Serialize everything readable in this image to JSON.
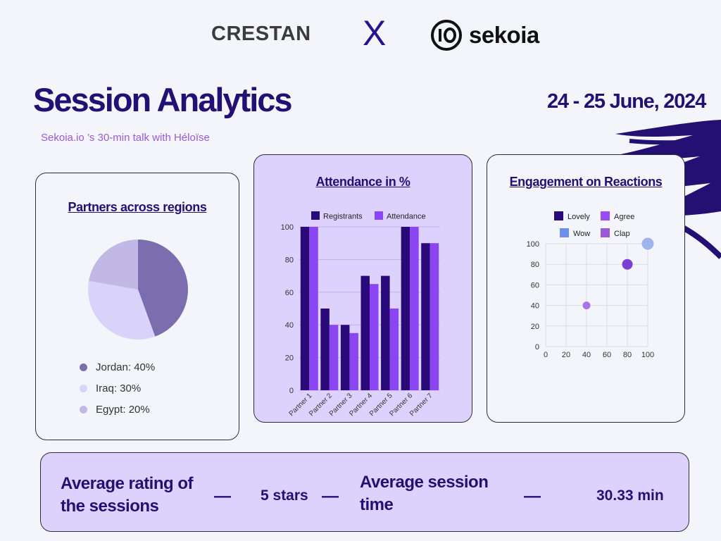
{
  "logos": {
    "left": "CRESTAN",
    "separator": "X",
    "right": "sekoia"
  },
  "header": {
    "title": "Session Analytics",
    "date": "24 - 25 June, 2024",
    "subtitle": "Sekoia.io ’s 30-min talk with Héloïse"
  },
  "colors": {
    "primary": "#241075",
    "lavender": "#dcd2fd",
    "violet": "#8b45f2",
    "pie_jordan": "#7c6eae",
    "pie_iraq": "#d9d3fb",
    "pie_egypt": "#c2b8e6"
  },
  "chart_data": [
    {
      "type": "pie",
      "title": "Partners across regions",
      "slices": [
        {
          "label": "Jordan",
          "value": 40,
          "display": "Jordan: 40%",
          "color": "#7c6eae"
        },
        {
          "label": "Iraq",
          "value": 30,
          "display": "Iraq: 30%",
          "color": "#d9d3fb"
        },
        {
          "label": "Egypt",
          "value": 20,
          "display": "Egypt: 20%",
          "color": "#c2b8e6"
        }
      ]
    },
    {
      "type": "bar",
      "title": "Attendance in %",
      "categories": [
        "Partner 1",
        "Partner 2",
        "Partner 3",
        "Partner 4",
        "Partner 5",
        "Partner 6",
        "Partner 7"
      ],
      "series": [
        {
          "name": "Registrants",
          "color": "#2a0a78",
          "values": [
            100,
            50,
            40,
            70,
            70,
            100,
            90
          ]
        },
        {
          "name": "Attendance",
          "color": "#8b45f2",
          "values": [
            100,
            40,
            35,
            65,
            50,
            100,
            90
          ]
        }
      ],
      "ylim": [
        0,
        100
      ],
      "yticks": [
        0,
        20,
        40,
        60,
        80,
        100
      ],
      "grid": true,
      "legend": "top"
    },
    {
      "type": "scatter",
      "title": "Engagement on Reactions",
      "legend": [
        {
          "name": "Lovely",
          "color": "#2a0a78"
        },
        {
          "name": "Agree",
          "color": "#9a4cf5"
        },
        {
          "name": "Wow",
          "color": "#6d8fe8"
        },
        {
          "name": "Clap",
          "color": "#9a59d6"
        }
      ],
      "points": [
        {
          "x": 40,
          "y": 40,
          "color": "#a972ee"
        },
        {
          "x": 80,
          "y": 80,
          "color": "#7b3fd6"
        },
        {
          "x": 100,
          "y": 100,
          "color": "#9fb3ec"
        }
      ],
      "xlim": [
        0,
        100
      ],
      "ylim": [
        0,
        100
      ],
      "xticks": [
        0,
        20,
        40,
        60,
        80,
        100
      ],
      "yticks": [
        0,
        20,
        40,
        60,
        80,
        100
      ],
      "grid": true
    }
  ],
  "stats": {
    "rating_label": "Average rating of the sessions",
    "rating_value": "5 stars",
    "time_label": "Average session time",
    "time_value": "30.33 min",
    "dash": "—"
  }
}
